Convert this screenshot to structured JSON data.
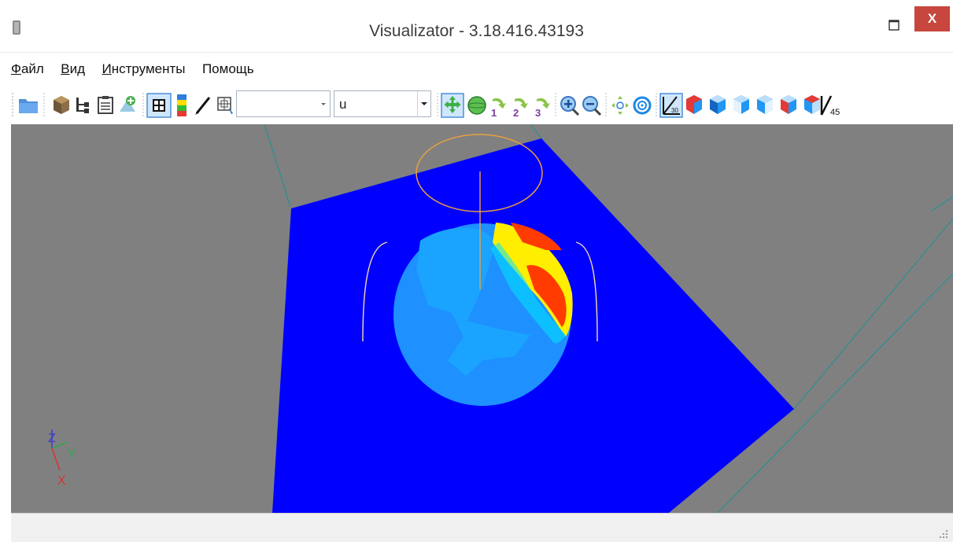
{
  "window": {
    "title": "Visualizator - 3.18.416.43193",
    "close_label": "X"
  },
  "menu": {
    "items": [
      {
        "underline": "Ф",
        "rest": "айл"
      },
      {
        "underline": "В",
        "rest": "ид"
      },
      {
        "underline": "И",
        "rest": "нструменты"
      },
      {
        "underline": "",
        "rest": "Помощь"
      }
    ]
  },
  "toolbar": {
    "combo1_value": "",
    "combo2_value": "u",
    "view_30_label": "30",
    "view_45_label": "45",
    "rotate_labels": [
      "1",
      "2",
      "3"
    ]
  },
  "axes": {
    "z": "Z",
    "y": "Y",
    "x": "X"
  },
  "colors": {
    "viewport_bg": "#808080",
    "plane": "#0000ff",
    "disk": "#1e90ff",
    "light_blue": "#1aa3ff",
    "hot_red": "#ff3b00",
    "hot_yellow": "#ffee00",
    "edge_teal": "#2b8f8f",
    "orbit_orange": "#e8a040"
  },
  "icons": [
    "folder-icon",
    "box-icon",
    "tree-icon",
    "clipboard-icon",
    "gear-icon",
    "grid-icon",
    "colorbar-icon",
    "pencil-icon",
    "cube-select-icon",
    "move-icon",
    "sphere-icon",
    "rotate-1-icon",
    "rotate-2-icon",
    "rotate-3-icon",
    "zoom-in-icon",
    "zoom-out-icon",
    "fit-icon",
    "target-icon",
    "view-30-icon",
    "cube-view-icons",
    "view-45-icon"
  ]
}
